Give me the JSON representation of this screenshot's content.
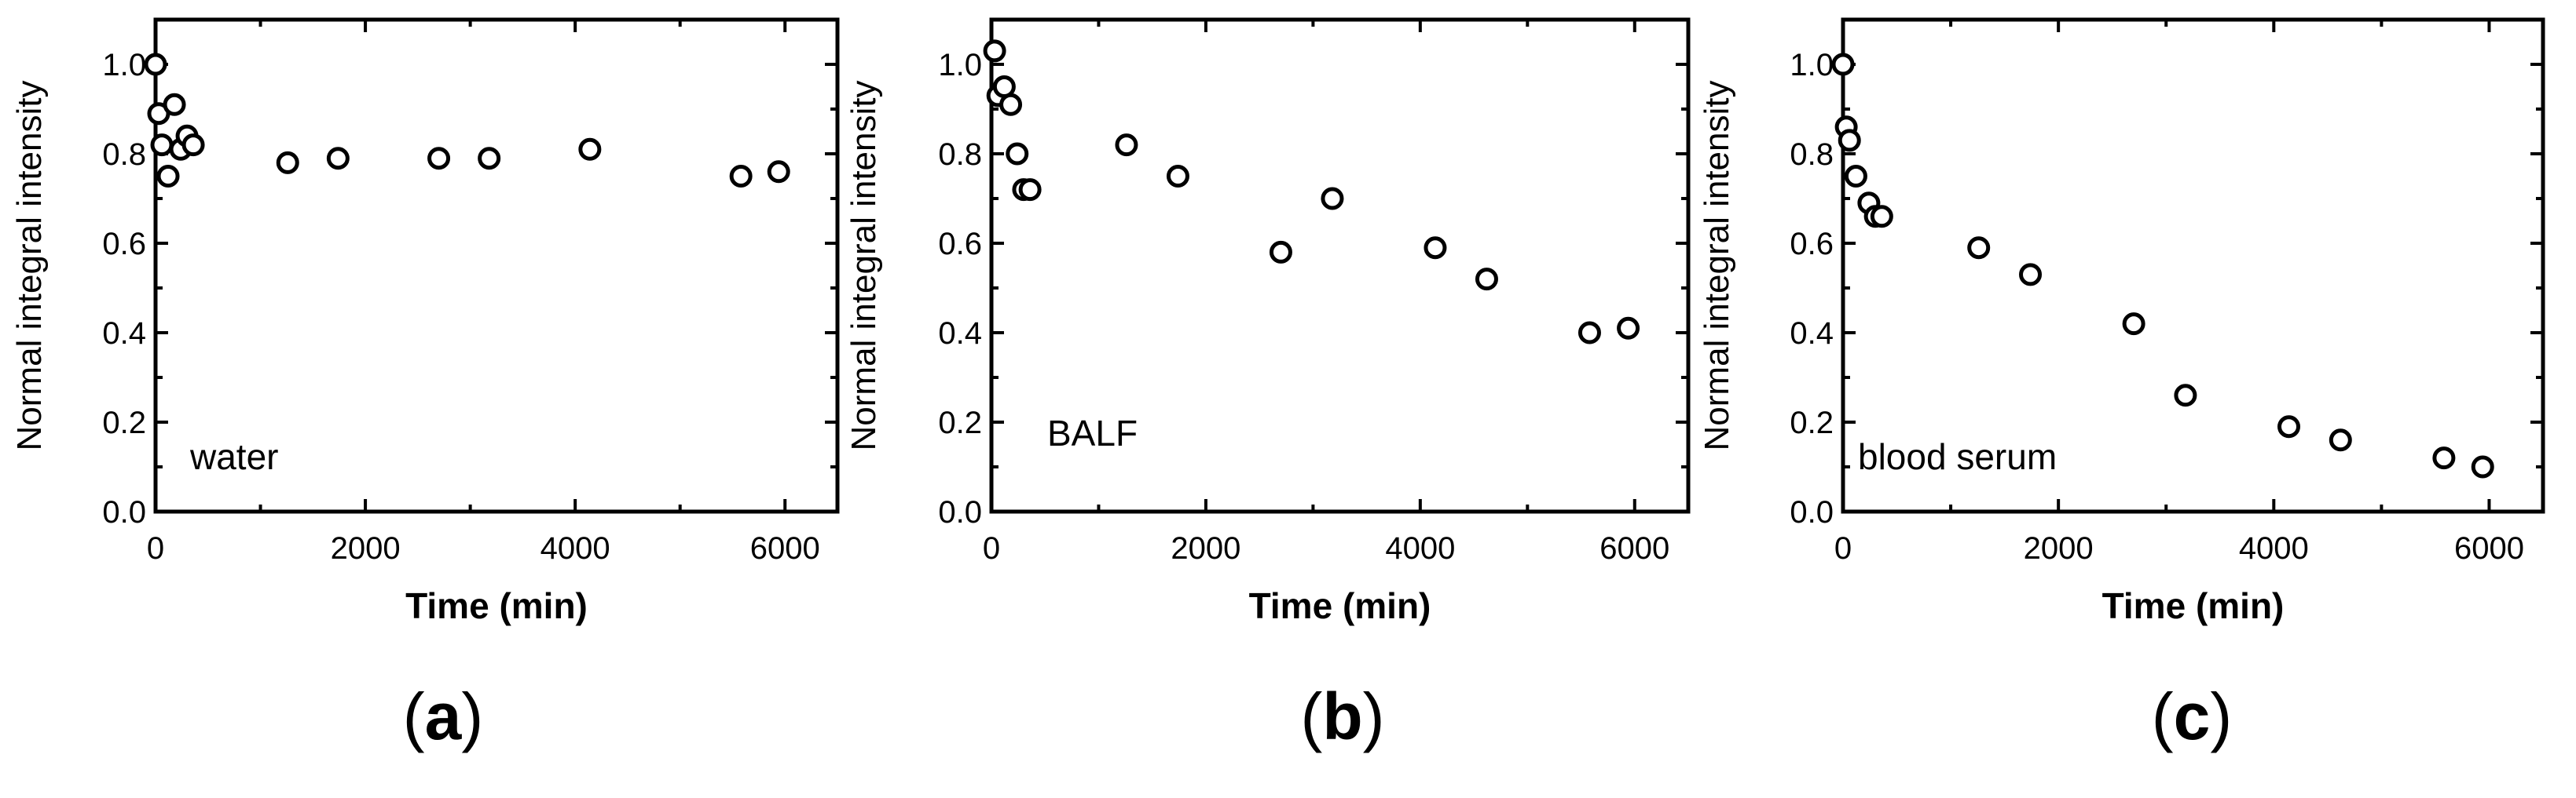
{
  "panel_labels": [
    "a",
    "b",
    "c"
  ],
  "chart_data": [
    {
      "type": "scatter",
      "title": "",
      "annotation": "water",
      "xlabel": "Time (min)",
      "ylabel": "Normal integral intensity",
      "xlim": [
        0,
        6500
      ],
      "ylim": [
        0,
        1.1
      ],
      "xticks": [
        "0",
        "2000",
        "4000",
        "6000"
      ],
      "yticks": [
        "0.0",
        "0.2",
        "0.4",
        "0.6",
        "0.8",
        "1.0"
      ],
      "grid": false,
      "marker": "open-circle",
      "x": [
        0,
        30,
        60,
        120,
        180,
        240,
        300,
        360,
        1260,
        1740,
        2700,
        3180,
        4140,
        5580,
        5940
      ],
      "y": [
        1.0,
        0.89,
        0.82,
        0.75,
        0.91,
        0.81,
        0.84,
        0.82,
        0.78,
        0.79,
        0.79,
        0.79,
        0.81,
        0.75,
        0.76
      ]
    },
    {
      "type": "scatter",
      "title": "",
      "annotation": "BALF",
      "xlabel": "Time (min)",
      "ylabel": "Normal integral intensity",
      "xlim": [
        0,
        6500
      ],
      "ylim": [
        0,
        1.1
      ],
      "xticks": [
        "0",
        "2000",
        "4000",
        "6000"
      ],
      "yticks": [
        "0.0",
        "0.2",
        "0.4",
        "0.6",
        "0.8",
        "1.0"
      ],
      "grid": false,
      "marker": "open-circle",
      "x": [
        30,
        60,
        120,
        180,
        240,
        300,
        360,
        1260,
        1740,
        2700,
        3180,
        4140,
        4620,
        5580,
        5940
      ],
      "y": [
        1.03,
        0.93,
        0.95,
        0.91,
        0.8,
        0.72,
        0.72,
        0.82,
        0.75,
        0.58,
        0.7,
        0.59,
        0.52,
        0.4,
        0.41
      ]
    },
    {
      "type": "scatter",
      "title": "",
      "annotation": "blood serum",
      "xlabel": "Time (min)",
      "ylabel": "Normal integral intensity",
      "xlim": [
        0,
        6500
      ],
      "ylim": [
        0,
        1.1
      ],
      "xticks": [
        "0",
        "2000",
        "4000",
        "6000"
      ],
      "yticks": [
        "0.0",
        "0.2",
        "0.4",
        "0.6",
        "0.8",
        "1.0"
      ],
      "grid": false,
      "marker": "open-circle",
      "x": [
        0,
        30,
        60,
        120,
        240,
        300,
        360,
        1260,
        1740,
        2700,
        3180,
        4140,
        4620,
        5580,
        5940
      ],
      "y": [
        1.0,
        0.86,
        0.83,
        0.75,
        0.69,
        0.66,
        0.66,
        0.59,
        0.53,
        0.42,
        0.26,
        0.19,
        0.16,
        0.12,
        0.1
      ]
    }
  ]
}
